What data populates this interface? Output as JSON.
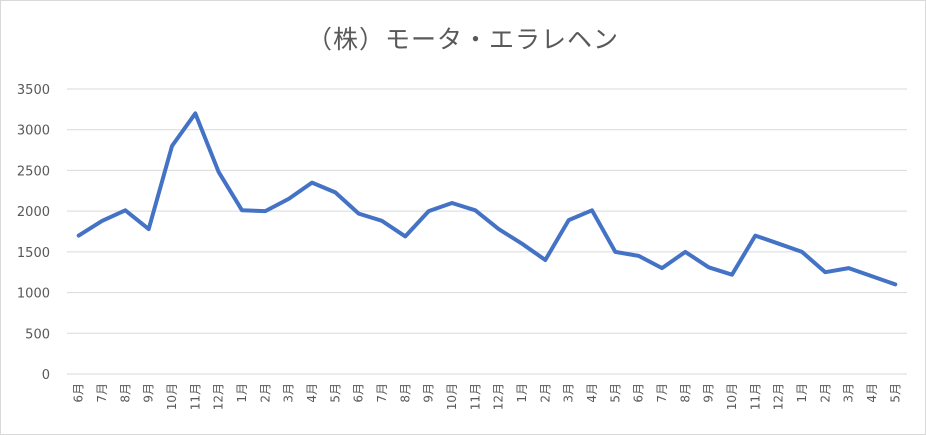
{
  "chart_data": {
    "type": "line",
    "title": "（株）モータ・エラレヘン",
    "xlabel": "",
    "ylabel": "",
    "ylim": [
      0,
      3500
    ],
    "yticks": [
      0,
      500,
      1000,
      1500,
      2000,
      2500,
      3000,
      3500
    ],
    "grid": true,
    "legend": "none",
    "categories": [
      "6月",
      "7月",
      "8月",
      "9月",
      "10月",
      "11月",
      "12月",
      "1月",
      "2月",
      "3月",
      "4月",
      "5月",
      "6月",
      "7月",
      "8月",
      "9月",
      "10月",
      "11月",
      "12月",
      "1月",
      "2月",
      "3月",
      "4月",
      "5月",
      "6月",
      "7月",
      "8月",
      "9月",
      "10月",
      "11月",
      "12月",
      "1月",
      "2月",
      "3月",
      "4月",
      "5月"
    ],
    "series": [
      {
        "values": [
          1700,
          1880,
          2010,
          1780,
          2800,
          3200,
          2480,
          2010,
          2000,
          2150,
          2350,
          2230,
          1970,
          1880,
          1690,
          2000,
          2100,
          2010,
          1780,
          1600,
          1400,
          1890,
          2010,
          1500,
          1450,
          1300,
          1500,
          1310,
          1220,
          1700,
          1600,
          1500,
          1250,
          1300,
          1200,
          1100
        ]
      }
    ],
    "colors": {
      "line": "#4472c4",
      "grid": "#d9d9d9",
      "text": "#595959"
    }
  }
}
